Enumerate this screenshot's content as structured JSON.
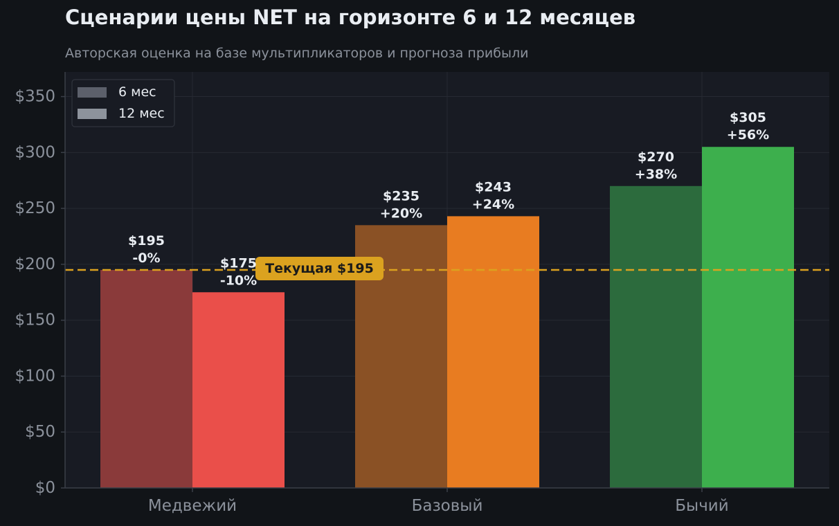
{
  "chart_data": {
    "type": "bar",
    "title": "Сценарии цены NET на горизонте 6 и 12 месяцев",
    "subtitle": "Авторская оценка на базе мультипликаторов и прогноза прибыли",
    "categories": [
      "Медвежий",
      "Базовый",
      "Бычий"
    ],
    "series": [
      {
        "name": "6 мес",
        "values": [
          195,
          235,
          270
        ],
        "labels": [
          "$195\n-0%",
          "$235\n+20%",
          "$270\n+38%"
        ],
        "colors": [
          "#8a3a3a",
          "#8a5125",
          "#2c6b3d"
        ]
      },
      {
        "name": "12 мес",
        "values": [
          175,
          243,
          305
        ],
        "labels": [
          "$175\n-10%",
          "$243\n+24%",
          "$305\n+56%"
        ],
        "colors": [
          "#ea4f4a",
          "#e87c21",
          "#3daf4d"
        ]
      }
    ],
    "legend_swatches": [
      "#5c606b",
      "#8d939c"
    ],
    "yticks": [
      0,
      50,
      100,
      150,
      200,
      250,
      300,
      350
    ],
    "ytick_labels": [
      "$0",
      "$50",
      "$100",
      "$150",
      "$200",
      "$250",
      "$300",
      "$350"
    ],
    "ylim": [
      0,
      372
    ],
    "reference_line": {
      "value": 195,
      "label": "Текущая $195",
      "color": "#dba21f"
    },
    "grid": true,
    "legend_position": "top-left",
    "colors": {
      "background": "#111418",
      "plot_background": "#181b23",
      "grid": "#262a33",
      "text": "#e9edf2",
      "muted_text": "#8b919b"
    }
  }
}
